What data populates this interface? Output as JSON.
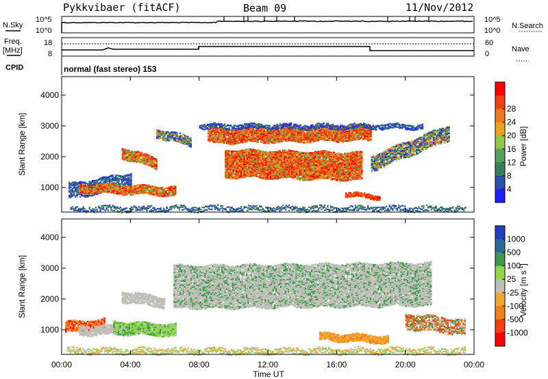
{
  "header": {
    "station": "Pykkvibaer (fitACF)",
    "beam": "Beam 09",
    "date": "11/Nov/2012"
  },
  "status_panels": {
    "nsky_label": "N.Sky",
    "nsky_ticks": [
      "10^5",
      "10^0"
    ],
    "nsearch_label": "N.Search",
    "nsearch_ticks": [
      "10^5",
      "10^0"
    ],
    "freq_label_1": "Freq.",
    "freq_label_2": "[MHz]",
    "freq_ticks": [
      "18",
      "8"
    ],
    "nave_label": "Nave",
    "nave_ticks": [
      "60",
      "0"
    ],
    "cpid_label": "CPID",
    "cpid_text": "normal (fast stereo) 153"
  },
  "colors": {
    "power_scale": [
      "#1f1fff",
      "#2a4fb0",
      "#3a7d5a",
      "#58a05c",
      "#8fc84a",
      "#f0a020",
      "#f07818",
      "#f04010",
      "#ff0000"
    ],
    "velocity_scale": [
      "#ff0000",
      "#f04010",
      "#f08018",
      "#f0a830",
      "#c0c0b8",
      "#90d848",
      "#3a9a4a",
      "#2a6a9a",
      "#2040c0"
    ]
  },
  "chart_data": [
    {
      "type": "heatmap",
      "name": "power",
      "ylabel": "Slant Range [km]",
      "yticks": [
        "1000",
        "2000",
        "3000",
        "4000"
      ],
      "ylim": [
        200,
        4600
      ],
      "colorbar_label": "Power [dB]",
      "colorbar_ticks": [
        "4",
        "8",
        "12",
        "16",
        "20",
        "24",
        "28"
      ]
    },
    {
      "type": "heatmap",
      "name": "velocity",
      "ylabel": "Slant Range [km]",
      "yticks": [
        "1000",
        "2000",
        "3000",
        "4000"
      ],
      "ylim": [
        200,
        4600
      ],
      "colorbar_label": "Velocity [m s-1]",
      "colorbar_label_main": "Velocity [m s",
      "colorbar_label_sup": "-1",
      "colorbar_label_end": "]",
      "colorbar_ticks": [
        "1000",
        "500",
        "100",
        "25",
        "-25",
        "-100",
        "-500",
        "-1000"
      ],
      "xlabel": "Time UT",
      "xticks": [
        "00:00",
        "04:00",
        "08:00",
        "12:00",
        "16:00",
        "20:00",
        "00:00"
      ]
    }
  ]
}
